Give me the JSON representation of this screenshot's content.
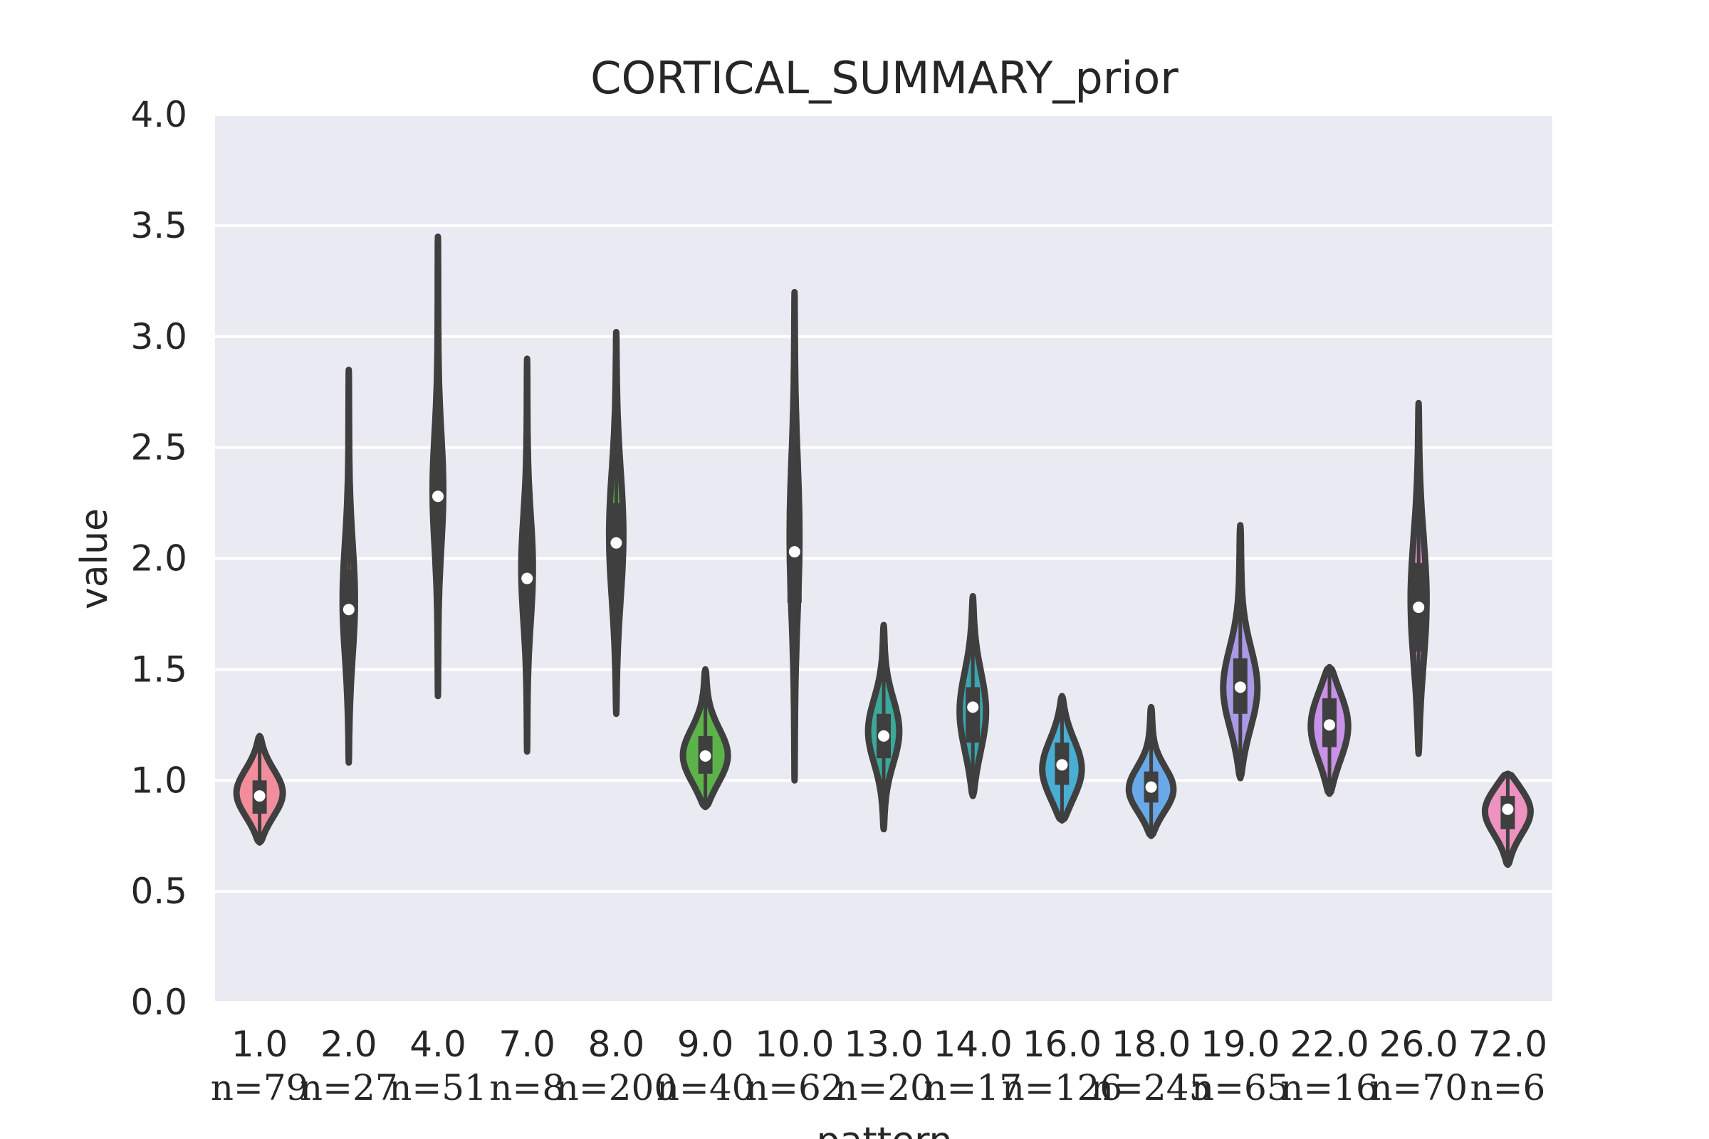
{
  "chart_data": {
    "type": "violin",
    "title": "CORTICAL_SUMMARY_prior",
    "xlabel": "pattern",
    "ylabel": "value",
    "ylim": [
      0.0,
      4.0
    ],
    "yticks": [
      "0.0",
      "0.5",
      "1.0",
      "1.5",
      "2.0",
      "2.5",
      "3.0",
      "3.5",
      "4.0"
    ],
    "grid": true,
    "categories": [
      "1.0",
      "2.0",
      "4.0",
      "7.0",
      "8.0",
      "9.0",
      "10.0",
      "13.0",
      "14.0",
      "16.0",
      "18.0",
      "19.0",
      "22.0",
      "26.0",
      "72.0"
    ],
    "counts": [
      "n=79",
      "n=27",
      "n=51",
      "n=8",
      "n=200",
      "n=40",
      "n=62",
      "n=20",
      "n=17",
      "n=126",
      "n=245",
      "n=65",
      "n=16",
      "n=70",
      "n=6"
    ],
    "colors": [
      "#f28e9b",
      "#d6a04b",
      "#a6ae3e",
      "#7aa844",
      "#5bb043",
      "#5cb34a",
      "#4fb49b",
      "#3ba898",
      "#3aa5ae",
      "#48aed4",
      "#6aa9e8",
      "#a89ae6",
      "#c892e6",
      "#e48bd0",
      "#ee92c0"
    ],
    "violins": [
      {
        "min": 0.72,
        "max": 1.2,
        "q1": 0.85,
        "median": 0.93,
        "q3": 1.0,
        "mode": 0.94
      },
      {
        "min": 1.08,
        "max": 2.85,
        "q1": 1.6,
        "median": 1.77,
        "q3": 1.95,
        "mode": 1.8
      },
      {
        "min": 1.38,
        "max": 3.45,
        "q1": 2.1,
        "median": 2.28,
        "q3": 2.45,
        "mode": 2.3
      },
      {
        "min": 1.13,
        "max": 2.9,
        "q1": 1.75,
        "median": 1.91,
        "q3": 2.08,
        "mode": 1.95
      },
      {
        "min": 1.3,
        "max": 3.02,
        "q1": 1.85,
        "median": 2.07,
        "q3": 2.25,
        "mode": 2.1
      },
      {
        "min": 0.88,
        "max": 1.5,
        "q1": 1.03,
        "median": 1.11,
        "q3": 1.2,
        "mode": 1.1
      },
      {
        "min": 1.0,
        "max": 3.2,
        "q1": 1.8,
        "median": 2.03,
        "q3": 2.28,
        "mode": 2.1
      },
      {
        "min": 0.78,
        "max": 1.7,
        "q1": 1.1,
        "median": 1.2,
        "q3": 1.3,
        "mode": 1.22
      },
      {
        "min": 0.93,
        "max": 1.83,
        "q1": 1.17,
        "median": 1.33,
        "q3": 1.42,
        "mode": 1.3
      },
      {
        "min": 0.82,
        "max": 1.38,
        "q1": 0.98,
        "median": 1.07,
        "q3": 1.17,
        "mode": 1.04
      },
      {
        "min": 0.75,
        "max": 1.33,
        "q1": 0.9,
        "median": 0.97,
        "q3": 1.04,
        "mode": 0.95
      },
      {
        "min": 1.01,
        "max": 2.15,
        "q1": 1.3,
        "median": 1.42,
        "q3": 1.55,
        "mode": 1.4
      },
      {
        "min": 0.94,
        "max": 1.51,
        "q1": 1.15,
        "median": 1.25,
        "q3": 1.37,
        "mode": 1.25
      },
      {
        "min": 1.12,
        "max": 2.7,
        "q1": 1.58,
        "median": 1.78,
        "q3": 1.98,
        "mode": 1.8
      },
      {
        "min": 0.62,
        "max": 1.03,
        "q1": 0.78,
        "median": 0.87,
        "q3": 0.93,
        "mode": 0.87
      }
    ]
  }
}
